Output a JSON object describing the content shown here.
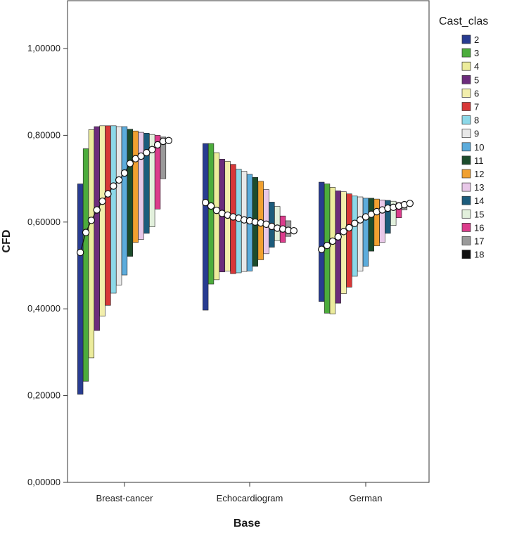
{
  "chart_data": {
    "type": "bar",
    "subtype": "high-low range bars with mean markers",
    "xlabel": "Base",
    "ylabel": "CFD",
    "ylim": [
      0,
      1.1
    ],
    "yticks": [
      0,
      0.2,
      0.4,
      0.6,
      0.8,
      1.0
    ],
    "ytick_labels": [
      "0,00000",
      "0,20000",
      "0,40000",
      "0,60000",
      "0,80000",
      "1,00000"
    ],
    "categories": [
      "Breast-cancer",
      "Echocardiogram",
      "German"
    ],
    "legend_title": "Cast_clas",
    "legend_position": "right",
    "grid": false,
    "series": [
      {
        "name": "2",
        "color": "#283c91",
        "high": [
          0.688,
          0.781,
          0.692
        ],
        "low": [
          0.203,
          0.397,
          0.417
        ],
        "mean": [
          0.53,
          0.645,
          0.537
        ]
      },
      {
        "name": "3",
        "color": "#4cac3c",
        "high": [
          0.769,
          0.781,
          0.688
        ],
        "low": [
          0.233,
          0.457,
          0.39
        ],
        "mean": [
          0.576,
          0.637,
          0.546
        ]
      },
      {
        "name": "4",
        "color": "#ecec9c",
        "high": [
          0.813,
          0.76,
          0.68
        ],
        "low": [
          0.287,
          0.467,
          0.388
        ],
        "mean": [
          0.604,
          0.627,
          0.556
        ]
      },
      {
        "name": "5",
        "color": "#6c2c7c",
        "high": [
          0.82,
          0.745,
          0.672
        ],
        "low": [
          0.35,
          0.485,
          0.413
        ],
        "mean": [
          0.628,
          0.62,
          0.566
        ]
      },
      {
        "name": "6",
        "color": "#f2eeac",
        "high": [
          0.822,
          0.74,
          0.67
        ],
        "low": [
          0.383,
          0.487,
          0.435
        ],
        "mean": [
          0.648,
          0.616,
          0.578
        ]
      },
      {
        "name": "7",
        "color": "#d83838",
        "high": [
          0.822,
          0.733,
          0.665
        ],
        "low": [
          0.408,
          0.481,
          0.45
        ],
        "mean": [
          0.665,
          0.612,
          0.587
        ]
      },
      {
        "name": "8",
        "color": "#8cd8e8",
        "high": [
          0.822,
          0.722,
          0.66
        ],
        "low": [
          0.436,
          0.483,
          0.475
        ],
        "mean": [
          0.683,
          0.609,
          0.597
        ]
      },
      {
        "name": "9",
        "color": "#e8e8e8",
        "high": [
          0.82,
          0.717,
          0.658
        ],
        "low": [
          0.455,
          0.486,
          0.487
        ],
        "mean": [
          0.697,
          0.605,
          0.605
        ]
      },
      {
        "name": "10",
        "color": "#5cacdc",
        "high": [
          0.82,
          0.71,
          0.655
        ],
        "low": [
          0.478,
          0.487,
          0.498
        ],
        "mean": [
          0.713,
          0.603,
          0.612
        ]
      },
      {
        "name": "11",
        "color": "#1c4c2c",
        "high": [
          0.814,
          0.703,
          0.655
        ],
        "low": [
          0.521,
          0.498,
          0.533
        ],
        "mean": [
          0.735,
          0.6,
          0.618
        ]
      },
      {
        "name": "12",
        "color": "#f0a030",
        "high": [
          0.81,
          0.694,
          0.653
        ],
        "low": [
          0.553,
          0.513,
          0.545
        ],
        "mean": [
          0.746,
          0.598,
          0.624
        ]
      },
      {
        "name": "13",
        "color": "#e8c8e8",
        "high": [
          0.807,
          0.675,
          0.651
        ],
        "low": [
          0.56,
          0.527,
          0.553
        ],
        "mean": [
          0.752,
          0.595,
          0.628
        ]
      },
      {
        "name": "14",
        "color": "#1c5c7c",
        "high": [
          0.805,
          0.646,
          0.65
        ],
        "low": [
          0.574,
          0.542,
          0.574
        ],
        "mean": [
          0.76,
          0.59,
          0.632
        ]
      },
      {
        "name": "15",
        "color": "#e2f0dc",
        "high": [
          0.802,
          0.636,
          0.648
        ],
        "low": [
          0.589,
          0.557,
          0.592
        ],
        "mean": [
          0.767,
          0.586,
          0.634
        ]
      },
      {
        "name": "16",
        "color": "#dc3c8c",
        "high": [
          0.8,
          0.614,
          0.645
        ],
        "low": [
          0.63,
          0.553,
          0.61
        ],
        "mean": [
          0.778,
          0.584,
          0.637
        ]
      },
      {
        "name": "17",
        "color": "#9a9a9a",
        "high": [
          0.796,
          0.603,
          0.643
        ],
        "low": [
          0.7,
          0.567,
          0.628
        ],
        "mean": [
          0.786,
          0.581,
          0.64
        ]
      },
      {
        "name": "18",
        "color": "#101010",
        "high": [
          0.79,
          0.585,
          0.645
        ],
        "low": [
          0.785,
          0.578,
          0.64
        ],
        "mean": [
          0.788,
          0.58,
          0.643
        ]
      }
    ]
  }
}
